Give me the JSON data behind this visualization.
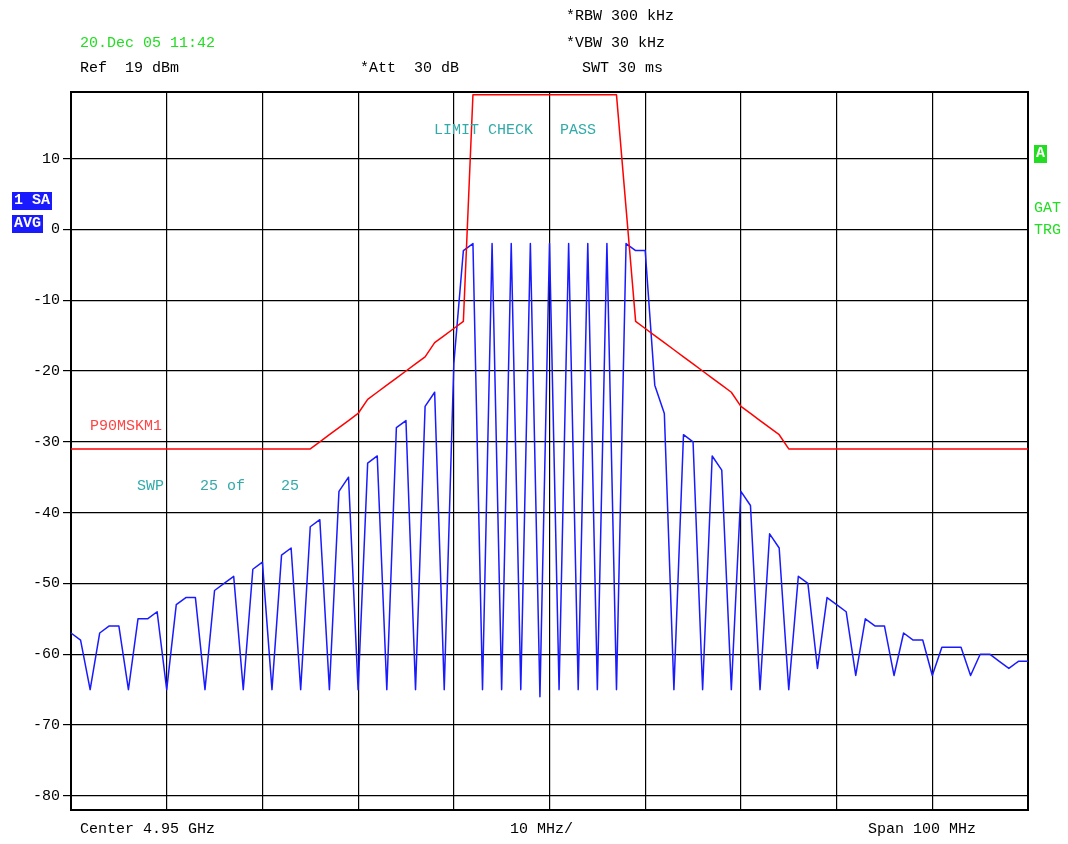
{
  "chart_data": {
    "type": "line",
    "annotations": [
      "20.Dec 05 11:42",
      "Ref  19 dBm",
      "*Att  30 dB",
      "*RBW 300 kHz",
      "*VBW 30 kHz",
      "SWT 30 ms",
      "LIMIT CHECK   PASS",
      "P90MSKM1",
      "SWP    25 of    25",
      "Center 4.95 GHz",
      "10 MHz/",
      "Span 100 MHz",
      "1 SA",
      "AVG",
      "A",
      "GAT",
      "TRG"
    ],
    "categories": [
      null,
      null,
      null,
      null,
      null,
      null,
      null,
      null,
      null,
      null,
      null,
      null,
      null,
      null,
      null,
      null,
      null,
      null,
      null,
      null,
      null,
      null,
      null,
      null,
      null,
      null,
      null,
      null,
      null,
      null,
      null,
      null,
      null,
      null,
      null,
      null,
      null,
      null,
      null,
      null,
      null,
      null,
      null,
      null,
      null,
      null,
      null,
      null,
      null,
      null,
      null,
      null,
      null,
      null,
      null,
      null,
      null,
      null,
      null,
      null,
      null,
      null,
      null,
      null,
      null,
      null,
      null,
      null,
      null,
      null,
      null,
      null,
      null,
      null,
      null,
      null,
      null,
      null,
      null,
      null,
      null,
      null,
      null,
      null,
      null,
      null,
      null,
      null,
      null,
      null,
      null,
      null,
      null,
      null,
      null,
      null,
      null,
      null,
      null,
      null,
      null
    ],
    "series": [
      {
        "color": "#ff0000",
        "values": [
          -31,
          -31,
          -31,
          -31,
          -31,
          -31,
          -31,
          -31,
          -31,
          -31,
          -31,
          -31,
          -31,
          -31,
          -31,
          -31,
          -31,
          -31,
          -31,
          -31,
          -31,
          -31,
          -31,
          -31,
          -31,
          -31,
          -30,
          -29,
          -28,
          -27,
          -26,
          -24,
          -23,
          -22,
          -21,
          -20,
          -19,
          -18,
          -16,
          -15,
          -14,
          -13,
          19,
          19,
          19,
          19,
          19,
          19,
          19,
          19,
          19,
          19,
          19,
          19,
          19,
          19,
          19,
          19,
          3,
          -13,
          -14,
          -15,
          -16,
          -17,
          -18,
          -19,
          -20,
          -21,
          -22,
          -23,
          -25,
          -26,
          -27,
          -28,
          -29,
          -31,
          -31,
          -31,
          -31,
          -31,
          -31,
          -31,
          -31,
          -31,
          -31,
          -31,
          -31,
          -31,
          -31,
          -31,
          -31,
          -31,
          -31,
          -31,
          -31,
          -31,
          -31,
          -31,
          -31,
          -31,
          -31
        ]
      },
      {
        "color": "#1a1aff",
        "values": [
          -57,
          -58,
          -65,
          -57,
          -56,
          -56,
          -65,
          -55,
          -55,
          -54,
          -65,
          -53,
          -52,
          -52,
          -65,
          -51,
          -50,
          -49,
          -65,
          -48,
          -47,
          -65,
          -46,
          -45,
          -65,
          -42,
          -41,
          -65,
          -37,
          -35,
          -65,
          -33,
          -32,
          -65,
          -28,
          -27,
          -65,
          -25,
          -23,
          -65,
          -19,
          -3,
          -2,
          -65,
          -2,
          -65,
          -2,
          -65,
          -2,
          -66,
          -2,
          -65,
          -2,
          -65,
          -2,
          -65,
          -2,
          -65,
          -2,
          -3,
          -3,
          -22,
          -26,
          -65,
          -29,
          -30,
          -65,
          -32,
          -34,
          -65,
          -37,
          -39,
          -65,
          -43,
          -45,
          -65,
          -49,
          -50,
          -62,
          -52,
          -53,
          -54,
          -63,
          -55,
          -56,
          -56,
          -63,
          -57,
          -58,
          -58,
          -63,
          -59,
          -59,
          -59,
          -63,
          -60,
          -60,
          -61,
          -62,
          -61,
          -61
        ]
      }
    ],
    "ylim": [
      -82,
      19.4
    ],
    "yticks": [
      10,
      0,
      -10,
      -20,
      -30,
      -40,
      -50,
      -60,
      -70,
      -80
    ],
    "grid": true,
    "legend": false,
    "marker": "none",
    "line_style": "solid",
    "tick_labels": "y"
  }
}
